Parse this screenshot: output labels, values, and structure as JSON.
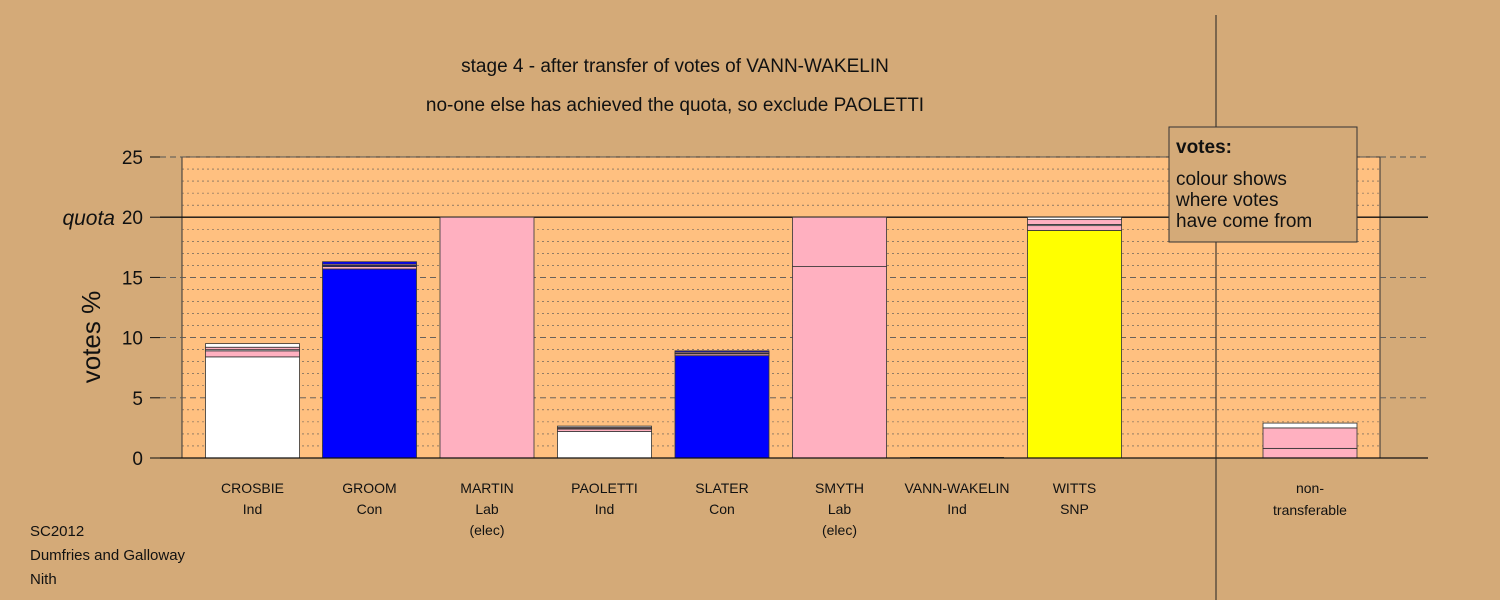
{
  "chart_data": {
    "type": "bar",
    "title": "stage 4 - after transfer of votes of VANN-WAKELIN",
    "subtitle": "no-one else has achieved the quota, so exclude PAOLETTI",
    "ylabel": "votes %",
    "ylim": [
      0,
      25
    ],
    "yticks": [
      "0",
      "5",
      "10",
      "15",
      "20",
      "25"
    ],
    "quota_label": "quota",
    "quota_value": 20,
    "grid": true,
    "colors": {
      "Ind": "#FFFFFF",
      "Con": "#0000FF",
      "Lab": "#FFB0C0",
      "SNP": "#FFFF00",
      "background": "#D4AA78",
      "plot_area": "#FFC080"
    },
    "candidates": [
      {
        "name": "CROSBIE",
        "party": "Ind",
        "note": "",
        "segments": [
          {
            "from": "Ind",
            "value": 8.4
          },
          {
            "from": "Lab",
            "value": 0.5
          },
          {
            "from": "Ind",
            "value": 0.1
          },
          {
            "from": "Lab",
            "value": 0.2
          },
          {
            "from": "Ind",
            "value": 0.3
          }
        ]
      },
      {
        "name": "GROOM",
        "party": "Con",
        "note": "",
        "segments": [
          {
            "from": "Con",
            "value": 15.7
          },
          {
            "from": "Lab",
            "value": 0.2
          },
          {
            "from": "Con",
            "value": 0.1
          },
          {
            "from": "Lab",
            "value": 0.1
          },
          {
            "from": "Con",
            "value": 0.2
          }
        ]
      },
      {
        "name": "MARTIN",
        "party": "Lab",
        "note": "(elec)",
        "segments": [
          {
            "from": "Lab",
            "value": 20.0
          }
        ]
      },
      {
        "name": "PAOLETTI",
        "party": "Ind",
        "note": "",
        "segments": [
          {
            "from": "Ind",
            "value": 2.2
          },
          {
            "from": "Lab",
            "value": 0.2
          },
          {
            "from": "Ind",
            "value": 0.05
          },
          {
            "from": "Lab",
            "value": 0.1
          },
          {
            "from": "Ind",
            "value": 0.1
          }
        ]
      },
      {
        "name": "SLATER",
        "party": "Con",
        "note": "",
        "segments": [
          {
            "from": "Con",
            "value": 8.5
          },
          {
            "from": "Lab",
            "value": 0.15
          },
          {
            "from": "Con",
            "value": 0.05
          },
          {
            "from": "Lab",
            "value": 0.1
          },
          {
            "from": "Con",
            "value": 0.1
          }
        ]
      },
      {
        "name": "SMYTH",
        "party": "Lab",
        "note": "(elec)",
        "segments": [
          {
            "from": "Lab",
            "value": 15.9
          },
          {
            "from": "Lab",
            "value": 4.1
          }
        ]
      },
      {
        "name": "VANN-WAKELIN",
        "party": "Ind",
        "note": "",
        "segments": []
      },
      {
        "name": "WITTS",
        "party": "SNP",
        "note": "",
        "segments": [
          {
            "from": "SNP",
            "value": 18.9
          },
          {
            "from": "Lab",
            "value": 0.4
          },
          {
            "from": "Ind",
            "value": 0.1
          },
          {
            "from": "Lab",
            "value": 0.4
          },
          {
            "from": "Ind",
            "value": 0.2
          }
        ]
      }
    ],
    "nontransferable": {
      "name": "non-",
      "line2": "transferable",
      "segments": [
        {
          "from": "Lab",
          "value": 0.8
        },
        {
          "from": "Lab",
          "value": 1.7
        },
        {
          "from": "Ind",
          "value": 0.4
        }
      ]
    },
    "legend": {
      "title": "votes:",
      "line1": "colour shows",
      "line2": "where votes",
      "line3": "have come from"
    }
  },
  "footer": {
    "line1": "SC2012",
    "line2": "Dumfries and Galloway",
    "line3": "Nith"
  }
}
